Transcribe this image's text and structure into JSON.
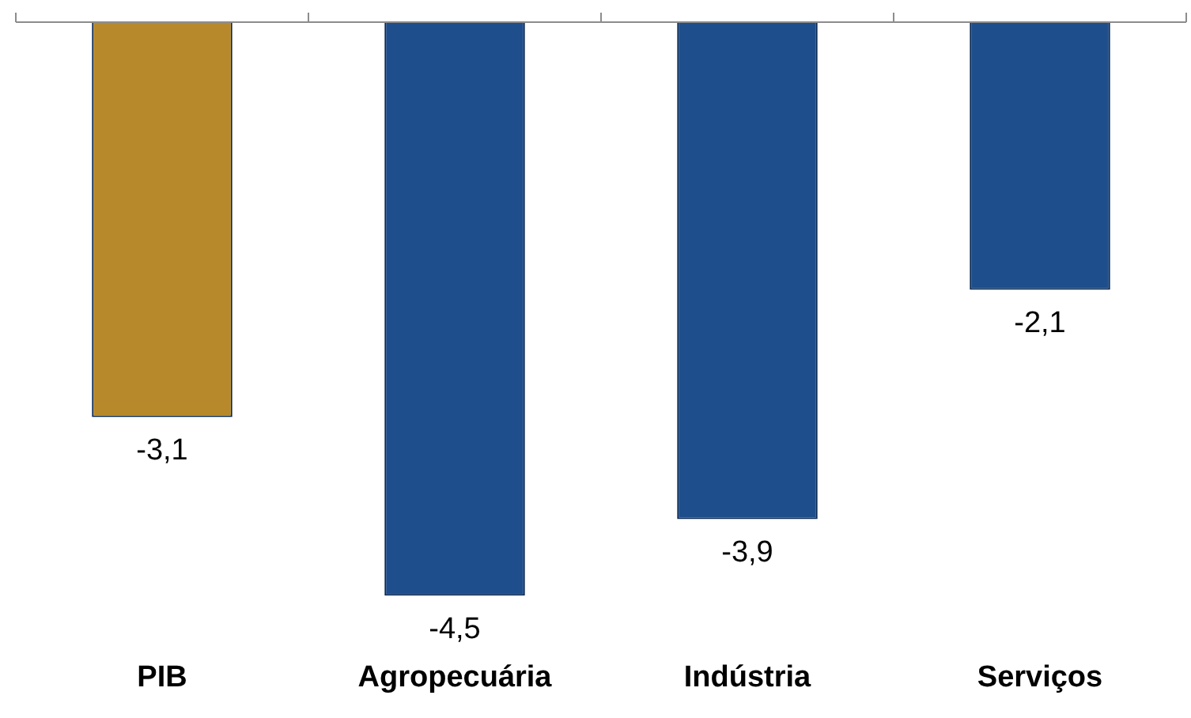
{
  "chart_data": {
    "type": "bar",
    "categories": [
      "PIB",
      "Agropecuária",
      "Indústria",
      "Serviços"
    ],
    "values": [
      -3.1,
      -4.5,
      -3.9,
      -2.1
    ],
    "colors": [
      "#b8892a",
      "#1f4e8c",
      "#1f4e8c",
      "#1f4e8c"
    ],
    "value_labels": [
      "-3,1",
      "-4,5",
      "-3,9",
      "-2,1"
    ],
    "grid": false,
    "legend": false
  }
}
